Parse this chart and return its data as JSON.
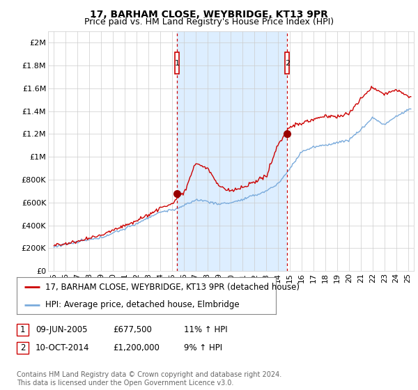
{
  "title": "17, BARHAM CLOSE, WEYBRIDGE, KT13 9PR",
  "subtitle": "Price paid vs. HM Land Registry's House Price Index (HPI)",
  "ylabel_ticks": [
    "£0",
    "£200K",
    "£400K",
    "£600K",
    "£800K",
    "£1M",
    "£1.2M",
    "£1.4M",
    "£1.6M",
    "£1.8M",
    "£2M"
  ],
  "ytick_values": [
    0,
    200000,
    400000,
    600000,
    800000,
    1000000,
    1200000,
    1400000,
    1600000,
    1800000,
    2000000
  ],
  "ylim": [
    0,
    2100000
  ],
  "xlim_start": 1994.5,
  "xlim_end": 2025.5,
  "sale1_x": 2005.44,
  "sale1_y": 677500,
  "sale2_x": 2014.78,
  "sale2_y": 1200000,
  "sale1_label": "1",
  "sale2_label": "2",
  "sale1_date": "09-JUN-2005",
  "sale1_price": "£677,500",
  "sale1_hpi": "11% ↑ HPI",
  "sale2_date": "10-OCT-2014",
  "sale2_price": "£1,200,000",
  "sale2_hpi": "9% ↑ HPI",
  "legend_line1": "17, BARHAM CLOSE, WEYBRIDGE, KT13 9PR (detached house)",
  "legend_line2": "HPI: Average price, detached house, Elmbridge",
  "footer": "Contains HM Land Registry data © Crown copyright and database right 2024.\nThis data is licensed under the Open Government Licence v3.0.",
  "line_red_color": "#cc0000",
  "line_blue_color": "#7aabdc",
  "shade_color": "#ddeeff",
  "bg_color": "#ffffff",
  "grid_color": "#cccccc",
  "sale_vline_color": "#cc0000",
  "box_color": "#cc0000",
  "title_fontsize": 10,
  "subtitle_fontsize": 9,
  "tick_fontsize": 8,
  "legend_fontsize": 8.5,
  "footer_fontsize": 7
}
